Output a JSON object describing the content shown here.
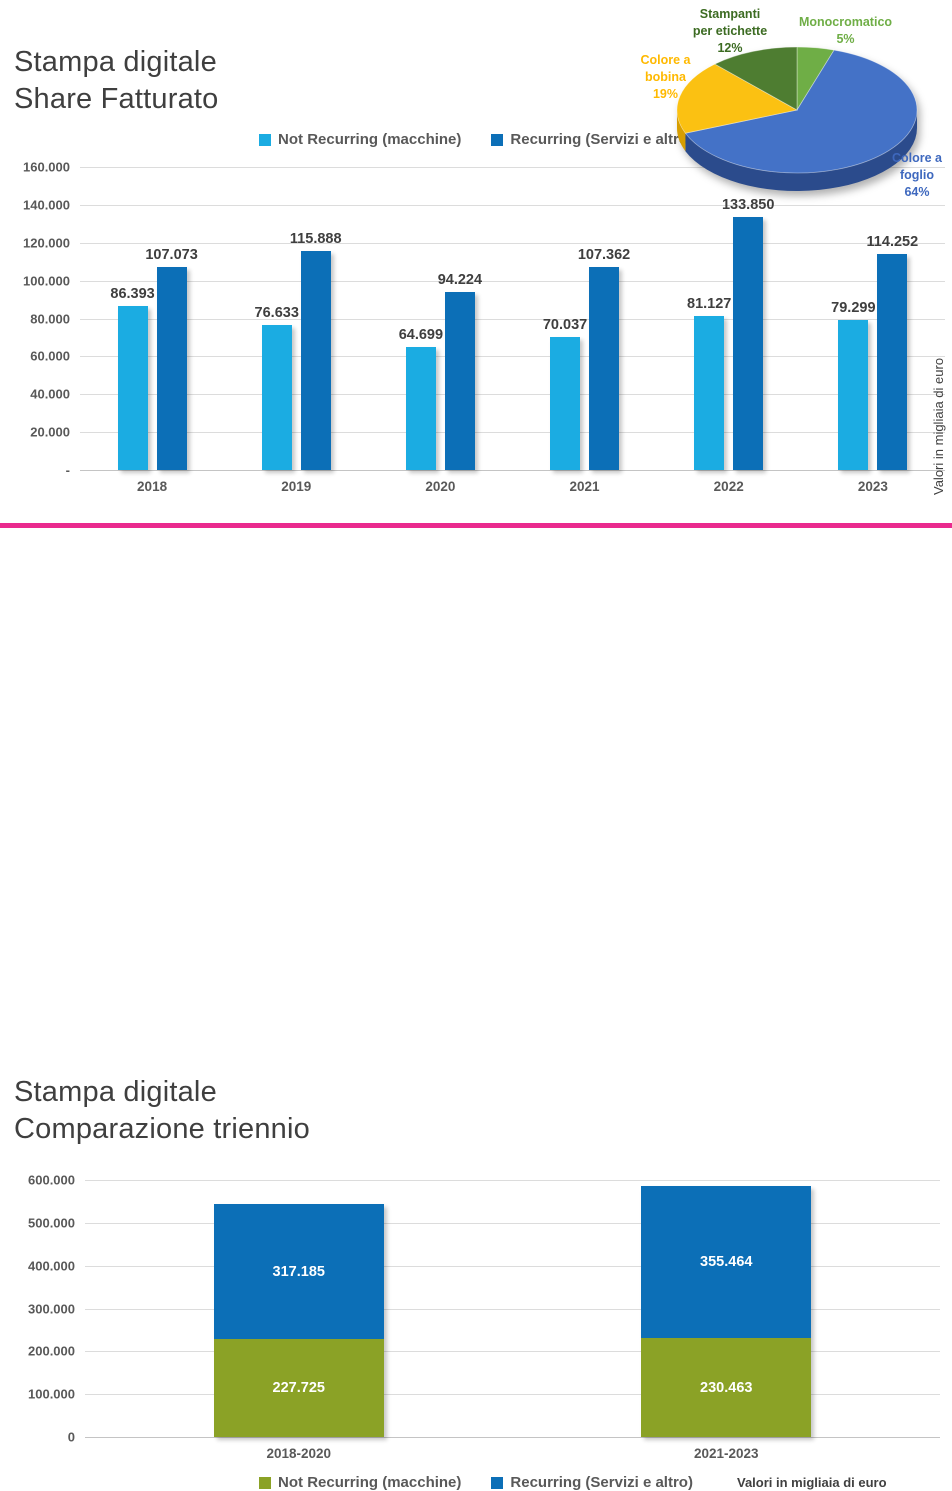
{
  "divider_color": "#EA2A8E",
  "notes": {
    "top_right_vertical": "Valori in migliaia di euro",
    "bottom_right": "Valori in migliaia di euro"
  },
  "section1": {
    "title": "Stampa digitale\nShare Fatturato"
  },
  "section2": {
    "title": "Stampa digitale\nComparazione triennio"
  },
  "chart_data": [
    {
      "id": "share-fatturato",
      "type": "bar",
      "title": "Stampa digitale Share Fatturato",
      "categories": [
        "2018",
        "2019",
        "2020",
        "2021",
        "2022",
        "2023"
      ],
      "series": [
        {
          "name": "Not Recurring (macchine)",
          "color": "#1BACE2",
          "values": [
            86393,
            76633,
            64699,
            70037,
            81127,
            79299
          ],
          "display": [
            "86.393",
            "76.633",
            "64.699",
            "70.037",
            "81.127",
            "79.299"
          ]
        },
        {
          "name": "Recurring (Servizi e altro)",
          "color": "#0C6FB7",
          "values": [
            107073,
            115888,
            94224,
            107362,
            133850,
            114252
          ],
          "display": [
            "107.073",
            "115.888",
            "94.224",
            "107.362",
            "133.850",
            "114.252"
          ]
        }
      ],
      "ylabel": "Valori in migliaia di euro",
      "ylim": [
        0,
        160000
      ],
      "yticks": [
        "160.000",
        "140.000",
        "120.000",
        "100.000",
        "80.000",
        "60.000",
        "40.000",
        "20.000",
        "-"
      ],
      "grid": true,
      "legend_position": "top"
    },
    {
      "id": "share-prodotti",
      "type": "pie",
      "style": "3d",
      "slices": [
        {
          "label": "Monocromatico",
          "pct": 5,
          "color": "#6FAE46",
          "dark": "#4f8030"
        },
        {
          "label": "Colore a foglio",
          "pct": 64,
          "color": "#4472C7",
          "dark": "#2B4B8C"
        },
        {
          "label": "Colore a bobina",
          "pct": 19,
          "color": "#FBC112",
          "dark": "#D79E00"
        },
        {
          "label": "Stampanti per etichette",
          "pct": 12,
          "color": "#4E7D31",
          "dark": "#38591f"
        }
      ],
      "callouts": [
        {
          "id": "etichette",
          "text": "Stampanti\nper etichette\n12%",
          "color": "#3C6B22"
        },
        {
          "id": "monocromatico",
          "text": "Monocromatico\n5%",
          "color": "#6FAE46"
        },
        {
          "id": "bobina",
          "text": "Colore a\nbobina\n19%",
          "color": "#FFB900"
        },
        {
          "id": "foglio",
          "text": "Colore a\nfoglio\n64%",
          "color": "#3E68BE"
        }
      ]
    },
    {
      "id": "comparazione-triennio",
      "type": "bar",
      "subtype": "stacked",
      "title": "Stampa digitale Comparazione triennio",
      "categories": [
        "2018-2020",
        "2021-2023"
      ],
      "series": [
        {
          "name": "Not Recurring (macchine)",
          "color": "#8BA226",
          "values": [
            227725,
            230463
          ],
          "display": [
            "227.725",
            "230.463"
          ]
        },
        {
          "name": "Recurring (Servizi e altro)",
          "color": "#0C6FB7",
          "values": [
            317185,
            355464
          ],
          "display": [
            "317.185",
            "355.464"
          ]
        }
      ],
      "ylabel": "Valori in migliaia di euro",
      "ylim": [
        0,
        600000
      ],
      "yticks": [
        "600.000",
        "500.000",
        "400.000",
        "300.000",
        "200.000",
        "100.000",
        "0"
      ],
      "grid": true,
      "legend_position": "bottom"
    }
  ]
}
